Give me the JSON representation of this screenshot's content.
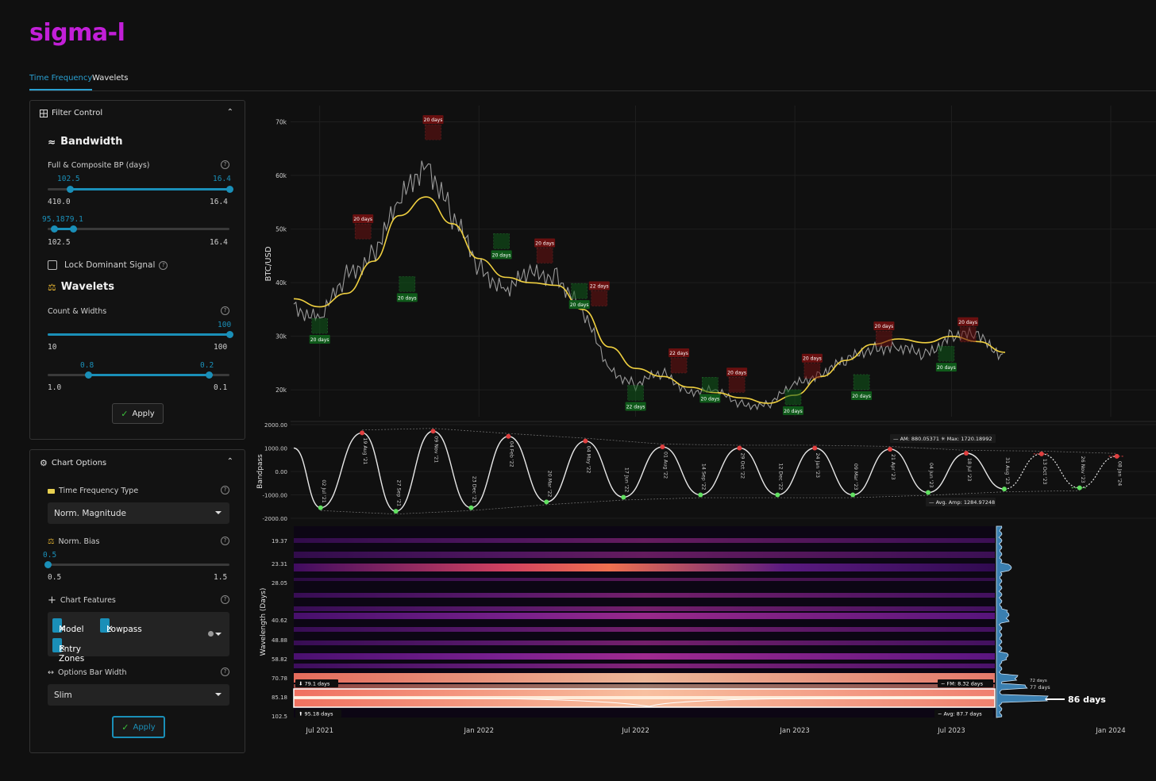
{
  "app": {
    "logo": "sigma-l"
  },
  "tabs": [
    {
      "label": "Time Frequency",
      "active": true
    },
    {
      "label": "Wavelets",
      "active": false
    }
  ],
  "filter_control": {
    "title": "Filter Control",
    "bandwidth": {
      "title": "Bandwidth",
      "label": "Full & Composite BP (days)",
      "slider1": {
        "val_low": "102.5",
        "val_high": "16.4",
        "min": "410.0",
        "max": "16.4"
      },
      "slider2": {
        "val_low": "95.18",
        "val_high": "79.1",
        "min": "102.5",
        "max": "16.4"
      }
    },
    "lock_label": "Lock Dominant Signal",
    "wavelets": {
      "title": "Wavelets",
      "label": "Count & Widths",
      "slider1": {
        "val": "100",
        "min": "10",
        "max": "100"
      },
      "slider2": {
        "val_low": "0.8",
        "val_high": "0.2",
        "min": "1.0",
        "max": "0.1"
      }
    },
    "apply_label": "Apply"
  },
  "chart_options": {
    "title": "Chart Options",
    "tf_type": {
      "label": "Time Frequency Type",
      "value": "Norm. Magnitude"
    },
    "norm_bias": {
      "label": "Norm. Bias",
      "val": "0.5",
      "min": "0.5",
      "max": "1.5"
    },
    "features": {
      "label": "Chart Features",
      "chips": [
        "Model",
        "Lowpass",
        "Entry Zones"
      ]
    },
    "bar_width": {
      "label": "Options Bar Width",
      "value": "Slim"
    },
    "apply_label": "Apply"
  },
  "colors": {
    "accent": "#1a8fb8",
    "logo": "#c21fd8",
    "model": "#f0d040",
    "peak": "#e04040",
    "trough": "#60e060"
  },
  "chart_data": [
    {
      "type": "line",
      "ylabel": "BTC/USD",
      "yticks": [
        "70k",
        "60k",
        "50k",
        "40k",
        "30k",
        "20k"
      ],
      "ylim": [
        15000,
        72000
      ],
      "xticks": [
        "Jul 2021",
        "Jan 2022",
        "Jul 2022",
        "Jan 2023",
        "Jul 2023",
        "Jan 2024"
      ],
      "series": [
        {
          "x": [
            "2021-06-01",
            "2021-07-01",
            "2021-08-01",
            "2021-09-01",
            "2021-10-01",
            "2021-11-01",
            "2021-12-01",
            "2022-01-01",
            "2022-02-01",
            "2022-03-01",
            "2022-04-01",
            "2022-05-01",
            "2022-06-01",
            "2022-07-01",
            "2022-08-01",
            "2022-09-01",
            "2022-10-01",
            "2022-11-01",
            "2022-12-01",
            "2023-01-01",
            "2023-02-01",
            "2023-03-01",
            "2023-04-01",
            "2023-05-01",
            "2023-06-01",
            "2023-07-01",
            "2023-08-01",
            "2023-09-01"
          ],
          "values": [
            36000,
            33000,
            41000,
            46000,
            54000,
            64000,
            52000,
            43000,
            39000,
            41000,
            42000,
            34000,
            24000,
            21000,
            23000,
            20000,
            19500,
            17500,
            17000,
            21000,
            23500,
            25000,
            28500,
            27500,
            26500,
            30500,
            29500,
            26500
          ]
        },
        {
          "x": [
            "2021-06-01",
            "2021-07-01",
            "2021-08-01",
            "2021-09-01",
            "2021-10-01",
            "2021-11-01",
            "2021-12-01",
            "2022-01-01",
            "2022-02-01",
            "2022-03-01",
            "2022-04-01",
            "2022-05-01",
            "2022-06-01",
            "2022-07-01",
            "2022-08-01",
            "2022-09-01",
            "2022-10-01",
            "2022-11-01",
            "2022-12-01",
            "2023-01-01",
            "2023-02-01",
            "2023-03-01",
            "2023-04-01",
            "2023-05-01",
            "2023-06-01",
            "2023-07-01",
            "2023-08-01",
            "2023-09-01"
          ],
          "values": [
            37000,
            35500,
            38000,
            44000,
            52500,
            56000,
            51000,
            44500,
            41000,
            40000,
            39500,
            35000,
            28000,
            24000,
            22500,
            20500,
            19500,
            18500,
            17500,
            19000,
            22500,
            25500,
            28500,
            29500,
            28800,
            30000,
            29000,
            27000
          ]
        }
      ],
      "labels": [
        {
          "text": "20 days",
          "kind": "peak",
          "date": "2021-11-09",
          "price": 70500
        },
        {
          "text": "20 days",
          "kind": "peak",
          "date": "2021-08-20",
          "price": 52000
        },
        {
          "text": "20 days",
          "kind": "peak",
          "date": "2022-03-18",
          "price": 47500
        },
        {
          "text": "22 days",
          "kind": "peak",
          "date": "2022-05-20",
          "price": 39500
        },
        {
          "text": "22 days",
          "kind": "peak",
          "date": "2022-08-20",
          "price": 27000
        },
        {
          "text": "20 days",
          "kind": "peak",
          "date": "2022-10-26",
          "price": 23400
        },
        {
          "text": "20 days",
          "kind": "peak",
          "date": "2023-01-21",
          "price": 26000
        },
        {
          "text": "20 days",
          "kind": "peak",
          "date": "2023-04-14",
          "price": 32000
        },
        {
          "text": "20 days",
          "kind": "peak",
          "date": "2023-07-20",
          "price": 32800
        },
        {
          "text": "20 days",
          "kind": "trough",
          "date": "2021-07-01",
          "price": 29500
        },
        {
          "text": "20 days",
          "kind": "trough",
          "date": "2021-10-10",
          "price": 37300
        },
        {
          "text": "20 days",
          "kind": "trough",
          "date": "2022-01-27",
          "price": 45300
        },
        {
          "text": "20 days",
          "kind": "trough",
          "date": "2022-04-27",
          "price": 36000
        },
        {
          "text": "22 days",
          "kind": "trough",
          "date": "2022-07-01",
          "price": 17000
        },
        {
          "text": "20 days",
          "kind": "trough",
          "date": "2022-09-25",
          "price": 18500
        },
        {
          "text": "20 days",
          "kind": "trough",
          "date": "2022-12-30",
          "price": 16200
        },
        {
          "text": "20 days",
          "kind": "trough",
          "date": "2023-03-19",
          "price": 19000
        },
        {
          "text": "20 days",
          "kind": "trough",
          "date": "2023-06-25",
          "price": 24300
        }
      ]
    },
    {
      "type": "line",
      "ylabel": "Bandpass",
      "yticks": [
        "2000.00",
        "1000.00",
        "0.00",
        "-1000.00",
        "-2000.00"
      ],
      "ylim": [
        -2000,
        2000
      ],
      "legend": {
        "am": "AM: 880.05371",
        "max": "Max: 1720.18992",
        "avg_amp": "Avg. Amp: 1284.97248"
      },
      "peaks": [
        {
          "label": "19 Aug '21",
          "date": "2021-08-19",
          "value": 1650
        },
        {
          "label": "09 Nov '21",
          "date": "2021-11-09",
          "value": 1720
        },
        {
          "label": "04 Feb '22",
          "date": "2022-02-04",
          "value": 1500
        },
        {
          "label": "04 May '22",
          "date": "2022-05-04",
          "value": 1300
        },
        {
          "label": "01 Aug '22",
          "date": "2022-08-01",
          "value": 1050
        },
        {
          "label": "29 Oct '22",
          "date": "2022-10-29",
          "value": 1000
        },
        {
          "label": "24 Jan '23",
          "date": "2023-01-24",
          "value": 1000
        },
        {
          "label": "21 Apr '23",
          "date": "2023-04-21",
          "value": 950
        },
        {
          "label": "18 Jul '23",
          "date": "2023-07-18",
          "value": 780
        },
        {
          "label": "13 Oct '23",
          "date": "2023-10-13",
          "value": 750
        },
        {
          "label": "08 Jan '24",
          "date": "2024-01-08",
          "value": 650
        }
      ],
      "troughs": [
        {
          "label": "02 Jul '21",
          "date": "2021-07-02",
          "value": -1550
        },
        {
          "label": "27 Sep '21",
          "date": "2021-09-27",
          "value": -1700
        },
        {
          "label": "23 Dec '21",
          "date": "2021-12-23",
          "value": -1550
        },
        {
          "label": "20 Mar '22",
          "date": "2022-03-20",
          "value": -1300
        },
        {
          "label": "17 Jun '22",
          "date": "2022-06-17",
          "value": -1100
        },
        {
          "label": "14 Sep '22",
          "date": "2022-09-14",
          "value": -1000
        },
        {
          "label": "12 Dec '22",
          "date": "2022-12-12",
          "value": -1000
        },
        {
          "label": "09 Mar '23",
          "date": "2023-03-09",
          "value": -1000
        },
        {
          "label": "04 Jun '23",
          "date": "2023-06-04",
          "value": -900
        },
        {
          "label": "31 Aug '23",
          "date": "2023-08-31",
          "value": -750
        },
        {
          "label": "26 Nov '23",
          "date": "2023-11-26",
          "value": -700
        }
      ]
    },
    {
      "type": "heatmap",
      "ylabel": "Wavelength (Days)",
      "yticks": [
        "19.37",
        "23.31",
        "28.05",
        "40.62",
        "48.88",
        "58.82",
        "70.78",
        "85.18",
        "102.5"
      ],
      "band_low_label": "79.1 days",
      "band_high_label": "95.18 days",
      "fm_label": "FM: 8.32 days",
      "avg_label": "Avg: 87.7 days",
      "spectrum_labels": [
        "72 days",
        "77 days",
        "86 days"
      ]
    }
  ]
}
